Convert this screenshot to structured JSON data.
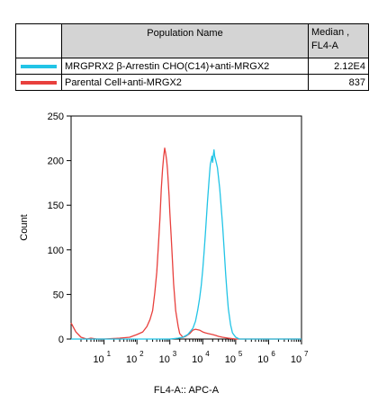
{
  "table": {
    "header_name": "Population Name",
    "header_median": "Median , FL4-A",
    "rows": [
      {
        "name": "MRGPRX2 β-Arrestin CHO(C14)+anti-MRGX2",
        "median": "2.12E4",
        "color": "#22c4e6"
      },
      {
        "name": "Parental Cell+anti-MRGX2",
        "median": "837",
        "color": "#e8403d"
      }
    ]
  },
  "chart_data": {
    "type": "line",
    "title": "",
    "xlabel": "FL4-A:: APC-A",
    "ylabel": "Count",
    "x_scale": "log",
    "xlim": [
      1,
      10000000
    ],
    "ylim": [
      0,
      250
    ],
    "grid": false,
    "x_tick_labels": [
      "10",
      "10",
      "10",
      "10",
      "10",
      "10",
      "10"
    ],
    "x_tick_exponents": [
      "1",
      "2",
      "3",
      "4",
      "5",
      "6",
      "7"
    ],
    "x_ticks": [
      10,
      100,
      1000,
      10000,
      100000,
      1000000,
      10000000
    ],
    "y_ticks": [
      0,
      50,
      100,
      150,
      200,
      250
    ],
    "y_tick_labels": [
      "0",
      "50",
      "100",
      "150",
      "200",
      "250"
    ],
    "series": [
      {
        "name": "Parental Cell+anti-MRGX2",
        "color": "#e8403d",
        "x": [
          1,
          1.4,
          2,
          3,
          4,
          6,
          10,
          30,
          60,
          100,
          150,
          200,
          250,
          300,
          350,
          400,
          450,
          500,
          550,
          600,
          650,
          700,
          750,
          800,
          850,
          900,
          950,
          1000,
          1100,
          1200,
          1300,
          1500,
          1800,
          2000,
          2500,
          3000,
          4000,
          5000,
          6000,
          8000,
          10000,
          12000,
          15000,
          20000,
          25000,
          30000,
          40000,
          60000,
          100000,
          1000000,
          10000000
        ],
        "y": [
          18,
          8,
          2,
          0,
          1,
          0,
          0,
          1,
          2,
          5,
          8,
          14,
          22,
          32,
          52,
          75,
          105,
          135,
          168,
          190,
          205,
          214,
          208,
          200,
          190,
          175,
          160,
          142,
          115,
          88,
          62,
          32,
          14,
          6,
          2,
          3,
          6,
          10,
          11,
          10,
          8,
          7,
          6,
          5,
          4,
          3,
          2,
          1,
          0,
          0,
          0
        ]
      },
      {
        "name": "MRGPRX2 β-Arrestin CHO(C14)+anti-MRGX2",
        "color": "#22c4e6",
        "x": [
          1,
          100,
          1000,
          1800,
          2500,
          3500,
          5000,
          6000,
          7000,
          8000,
          9000,
          10000,
          11000,
          12000,
          13000,
          14000,
          15000,
          16000,
          17000,
          18000,
          19000,
          20000,
          21000,
          22000,
          23000,
          25000,
          28000,
          30000,
          33000,
          36000,
          40000,
          45000,
          50000,
          55000,
          60000,
          70000,
          80000,
          100000,
          130000,
          200000,
          1000000,
          10000000
        ],
        "y": [
          0,
          0,
          0,
          1,
          2,
          5,
          12,
          20,
          32,
          45,
          60,
          78,
          98,
          118,
          138,
          155,
          170,
          185,
          196,
          200,
          205,
          198,
          207,
          212,
          205,
          200,
          192,
          182,
          168,
          150,
          128,
          98,
          72,
          50,
          34,
          16,
          7,
          2,
          0,
          0,
          0,
          0
        ]
      }
    ]
  }
}
